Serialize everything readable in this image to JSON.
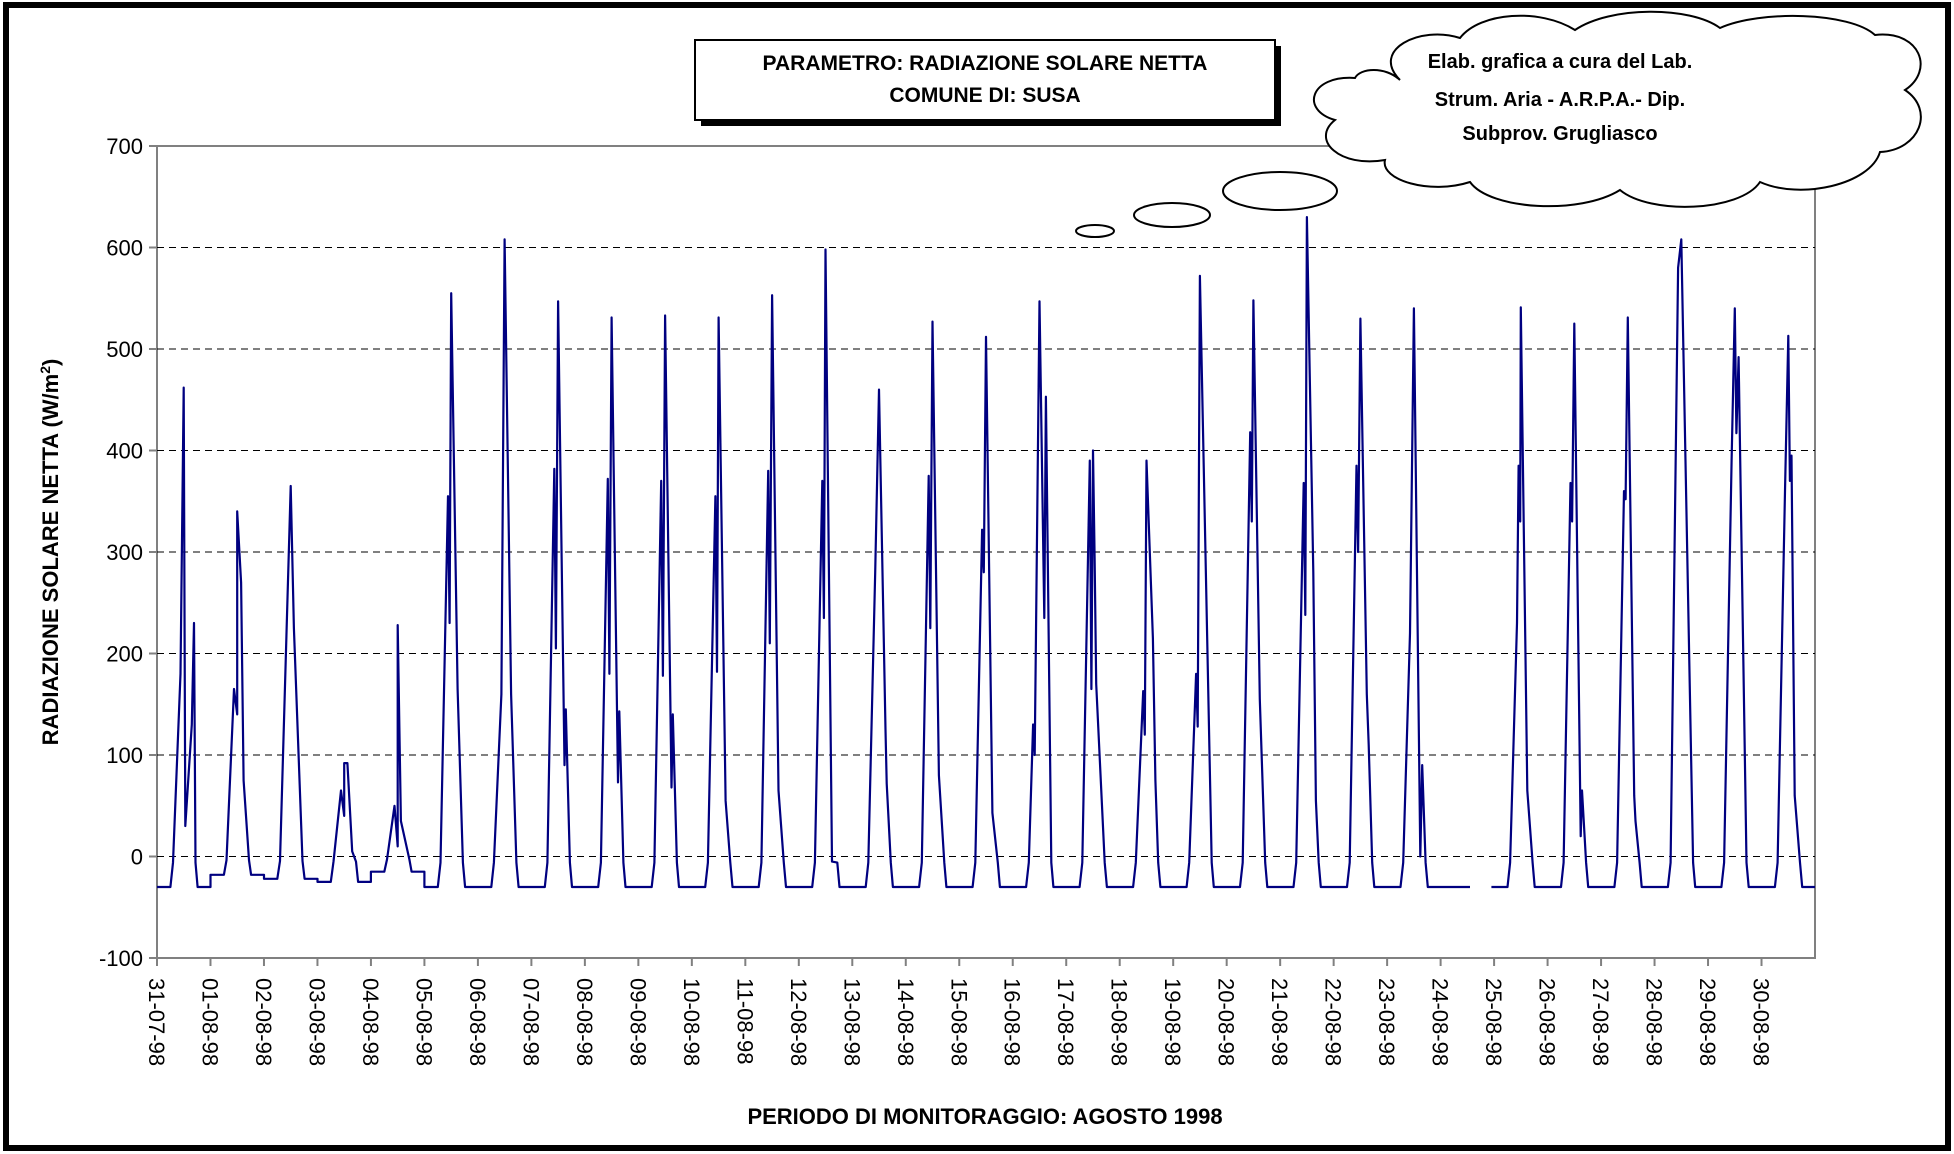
{
  "chart_data": {
    "type": "line",
    "title": [
      "PARAMETRO: RADIAZIONE SOLARE NETTA",
      "COMUNE DI: SUSA"
    ],
    "xlabel": "PERIODO DI MONITORAGGIO: AGOSTO 1998",
    "ylabel": "RADIAZIONE SOLARE NETTA (W/m",
    "ylabel_sup": "2",
    "ylabel_close": ")",
    "ylim": [
      -100,
      700
    ],
    "yticks": [
      -100,
      0,
      100,
      200,
      300,
      400,
      500,
      600,
      700
    ],
    "gridlines": "horizontal dashed",
    "annotation": [
      "Elab. grafica a cura del Lab.",
      "Strum. Aria - A.R.P.A.- Dip.",
      "Subprov. Grugliasco"
    ],
    "x_categories": [
      "31-07-98",
      "01-08-98",
      "02-08-98",
      "03-08-98",
      "04-08-98",
      "05-08-98",
      "06-08-98",
      "07-08-98",
      "08-08-98",
      "09-08-98",
      "10-08-98",
      "11-08-98",
      "12-08-98",
      "13-08-98",
      "14-08-98",
      "15-08-98",
      "16-08-98",
      "17-08-98",
      "18-08-98",
      "19-08-98",
      "20-08-98",
      "21-08-98",
      "22-08-98",
      "23-08-98",
      "24-08-98",
      "25-08-98",
      "26-08-98",
      "27-08-98",
      "28-08-98",
      "29-08-98",
      "30-08-98"
    ],
    "series": [
      {
        "color": "#000080",
        "daily_profiles": [
          {
            "day": "31-07-98",
            "night": -30,
            "peak": 462,
            "spikes": [
              [
                0.4,
                180
              ],
              [
                0.55,
                30
              ],
              [
                0.75,
                130
              ],
              [
                0.82,
                230
              ]
            ]
          },
          {
            "day": "01-08-98",
            "night": -18,
            "peak": 340,
            "spikes": [
              [
                0.4,
                165
              ],
              [
                0.5,
                140
              ],
              [
                0.62,
                270
              ],
              [
                0.7,
                75
              ]
            ]
          },
          {
            "day": "02-08-98",
            "night": -22,
            "peak": 365,
            "spikes": [
              [
                0.6,
                225
              ]
            ]
          },
          {
            "day": "03-08-98",
            "night": -25,
            "peak": 92,
            "spikes": [
              [
                0.4,
                65
              ],
              [
                0.5,
                40
              ],
              [
                0.6,
                92
              ],
              [
                0.75,
                5
              ]
            ]
          },
          {
            "day": "04-08-98",
            "night": -15,
            "peak": 228,
            "spikes": [
              [
                0.4,
                50
              ],
              [
                0.5,
                10
              ],
              [
                0.6,
                35
              ]
            ]
          },
          {
            "day": "05-08-98",
            "night": -30,
            "peak": 555,
            "spikes": [
              [
                0.4,
                355
              ],
              [
                0.45,
                230
              ],
              [
                0.7,
                165
              ]
            ]
          },
          {
            "day": "06-08-98",
            "night": -30,
            "peak": 608,
            "spikes": [
              [
                0.4,
                160
              ],
              [
                0.7,
                160
              ]
            ]
          },
          {
            "day": "07-08-98",
            "night": -30,
            "peak": 547,
            "spikes": [
              [
                0.38,
                382
              ],
              [
                0.43,
                205
              ],
              [
                0.7,
                90
              ],
              [
                0.74,
                145
              ]
            ]
          },
          {
            "day": "08-08-98",
            "night": -30,
            "peak": 531,
            "spikes": [
              [
                0.38,
                372
              ],
              [
                0.43,
                180
              ],
              [
                0.7,
                73
              ],
              [
                0.74,
                143
              ]
            ]
          },
          {
            "day": "09-08-98",
            "night": -30,
            "peak": 533,
            "spikes": [
              [
                0.38,
                370
              ],
              [
                0.43,
                178
              ],
              [
                0.7,
                68
              ],
              [
                0.74,
                140
              ]
            ]
          },
          {
            "day": "10-08-98",
            "night": -30,
            "peak": 531,
            "spikes": [
              [
                0.4,
                355
              ],
              [
                0.45,
                182
              ],
              [
                0.72,
                55
              ]
            ]
          },
          {
            "day": "11-08-98",
            "night": -30,
            "peak": 553,
            "spikes": [
              [
                0.38,
                380
              ],
              [
                0.43,
                210
              ],
              [
                0.7,
                65
              ]
            ]
          },
          {
            "day": "12-08-98",
            "night": -30,
            "peak": 598,
            "spikes": [
              [
                0.4,
                370
              ],
              [
                0.45,
                235
              ],
              [
                0.7,
                -5
              ]
            ]
          },
          {
            "day": "13-08-98",
            "night": -30,
            "peak": 460,
            "spikes": [
              [
                0.38,
                280
              ],
              [
                0.7,
                125
              ],
              [
                0.74,
                72
              ]
            ]
          },
          {
            "day": "14-08-98",
            "night": -30,
            "peak": 527,
            "spikes": [
              [
                0.38,
                375
              ],
              [
                0.43,
                225
              ],
              [
                0.7,
                80
              ]
            ]
          },
          {
            "day": "15-08-98",
            "night": -30,
            "peak": 512,
            "spikes": [
              [
                0.38,
                322
              ],
              [
                0.43,
                280
              ],
              [
                0.7,
                43
              ]
            ]
          },
          {
            "day": "16-08-98",
            "night": -30,
            "peak": 547,
            "spikes": [
              [
                0.3,
                130
              ],
              [
                0.35,
                100
              ],
              [
                0.65,
                235
              ],
              [
                0.7,
                453
              ]
            ]
          },
          {
            "day": "17-08-98",
            "night": -30,
            "peak": 400,
            "spikes": [
              [
                0.4,
                390
              ],
              [
                0.45,
                165
              ],
              [
                0.55,
                295
              ],
              [
                0.6,
                170
              ]
            ]
          },
          {
            "day": "18-08-98",
            "night": -30,
            "peak": 390,
            "spikes": [
              [
                0.4,
                163
              ],
              [
                0.45,
                120
              ],
              [
                0.7,
                215
              ],
              [
                0.78,
                75
              ]
            ]
          },
          {
            "day": "19-08-98",
            "night": -30,
            "peak": 572,
            "spikes": [
              [
                0.38,
                180
              ],
              [
                0.43,
                128
              ]
            ]
          },
          {
            "day": "20-08-98",
            "night": -30,
            "peak": 548,
            "spikes": [
              [
                0.4,
                418
              ],
              [
                0.45,
                330
              ],
              [
                0.7,
                155
              ]
            ]
          },
          {
            "day": "21-08-98",
            "night": -30,
            "peak": 630,
            "spikes": [
              [
                0.4,
                368
              ],
              [
                0.45,
                238
              ],
              [
                0.7,
                280
              ],
              [
                0.78,
                55
              ]
            ]
          },
          {
            "day": "22-08-98",
            "night": -30,
            "peak": 530,
            "spikes": [
              [
                0.38,
                385
              ],
              [
                0.43,
                300
              ],
              [
                0.7,
                160
              ],
              [
                0.76,
                110
              ]
            ]
          },
          {
            "day": "23-08-98",
            "night": -30,
            "peak": 540,
            "spikes": [
              [
                0.38,
                220
              ],
              [
                0.7,
                0
              ],
              [
                0.76,
                90
              ]
            ]
          },
          {
            "day": "24-08-98",
            "night": -30,
            "peak": null,
            "spikes": []
          },
          {
            "day": "25-08-98",
            "night": -30,
            "peak": 541,
            "spikes": [
              [
                0.38,
                230
              ],
              [
                0.43,
                385
              ],
              [
                0.48,
                330
              ],
              [
                0.7,
                65
              ]
            ]
          },
          {
            "day": "26-08-98",
            "night": -30,
            "peak": 525,
            "spikes": [
              [
                0.38,
                368
              ],
              [
                0.43,
                330
              ],
              [
                0.7,
                20
              ],
              [
                0.74,
                65
              ]
            ]
          },
          {
            "day": "27-08-98",
            "night": -30,
            "peak": 531,
            "spikes": [
              [
                0.38,
                360
              ],
              [
                0.43,
                352
              ],
              [
                0.7,
                60
              ],
              [
                0.74,
                35
              ]
            ]
          },
          {
            "day": "28-08-98",
            "night": -30,
            "peak": 608,
            "spikes": [
              [
                0.4,
                580
              ]
            ]
          },
          {
            "day": "29-08-98",
            "night": -30,
            "peak": 540,
            "spikes": [
              [
                0.4,
                390
              ],
              [
                0.55,
                417
              ],
              [
                0.62,
                492
              ]
            ]
          },
          {
            "day": "30-08-98",
            "night": -30,
            "peak": 513,
            "spikes": [
              [
                0.4,
                360
              ],
              [
                0.55,
                370
              ],
              [
                0.6,
                395
              ],
              [
                0.7,
                60
              ]
            ]
          }
        ]
      }
    ]
  }
}
